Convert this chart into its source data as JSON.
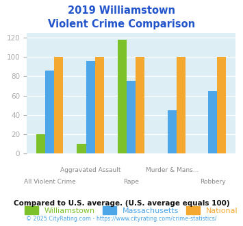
{
  "title_line1": "2019 Williamstown",
  "title_line2": "Violent Crime Comparison",
  "categories": [
    "All Violent Crime",
    "Aggravated Assault",
    "Rape",
    "Murder & Mans...",
    "Robbery"
  ],
  "williamstown": [
    20,
    10,
    118,
    0,
    0
  ],
  "massachusetts": [
    86,
    96,
    75,
    45,
    65
  ],
  "national": [
    100,
    100,
    100,
    100,
    100
  ],
  "bar_colors": {
    "williamstown": "#7cc12a",
    "massachusetts": "#4da6e8",
    "national": "#f5a830"
  },
  "ylim": [
    0,
    125
  ],
  "yticks": [
    0,
    20,
    40,
    60,
    80,
    100,
    120
  ],
  "legend_labels": [
    "Williamstown",
    "Massachusetts",
    "National"
  ],
  "legend_colors": [
    "#7cc12a",
    "#4da6e8",
    "#f5a830"
  ],
  "footnote1": "Compared to U.S. average. (U.S. average equals 100)",
  "footnote2": "© 2025 CityRating.com - https://www.cityrating.com/crime-statistics/",
  "title_color": "#2255cc",
  "footnote1_color": "#111111",
  "footnote2_color": "#4da6e8",
  "fig_bg_color": "#ffffff",
  "plot_bg": "#ddeef5",
  "grid_color": "#ffffff",
  "tick_label_color": "#aaaaaa",
  "bar_width": 0.22
}
